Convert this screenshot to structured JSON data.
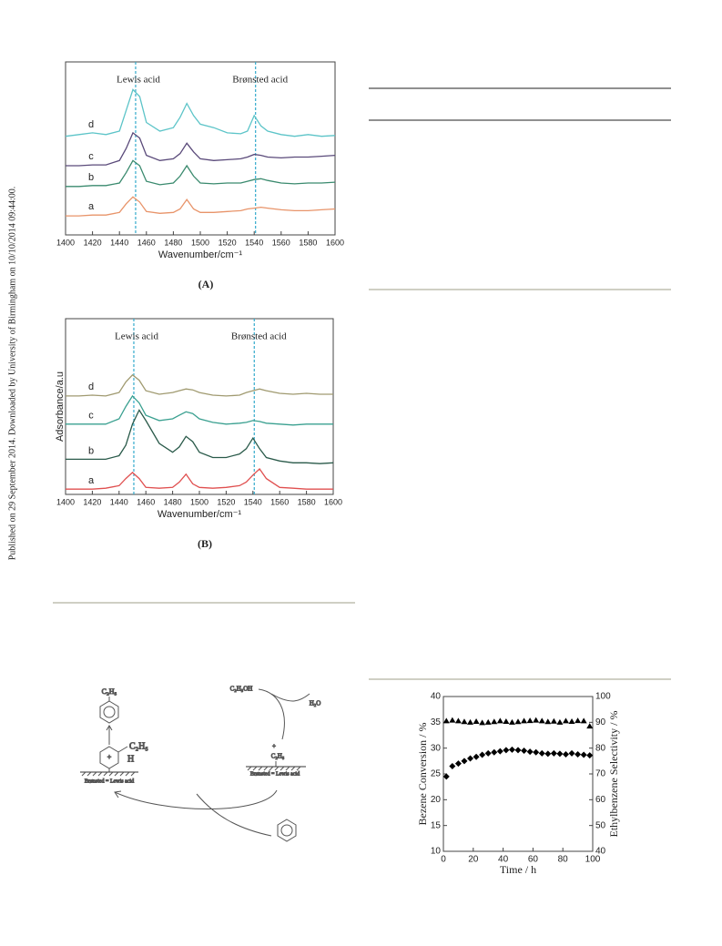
{
  "side_note": "Published on 29 September 2014. Downloaded by University of Birmingham on 10/10/2014 09:44:00.",
  "scheme": {
    "top_product": "C₂H₅",
    "ethanol": "C₂H₅OH",
    "water": "H₂O",
    "cation_charge": "+",
    "cation": "C₂H₅",
    "ring_charge": "+",
    "ring_h": "H",
    "ring_ethyl": "C₂H₅",
    "site_left": "Brønsted = Lewis acid",
    "site_right": "Brønsted = Lewis acid"
  },
  "chart_data": [
    {
      "type": "line",
      "caption": "(A)",
      "xlabel": "Wavenumber/cm⁻¹",
      "x": [
        1400,
        1410,
        1420,
        1430,
        1440,
        1445,
        1450,
        1455,
        1460,
        1470,
        1480,
        1485,
        1490,
        1495,
        1500,
        1510,
        1520,
        1530,
        1535,
        1540,
        1545,
        1550,
        1560,
        1570,
        1580,
        1590,
        1600
      ],
      "xlim": [
        1400,
        1600
      ],
      "xticks": [
        1400,
        1420,
        1440,
        1460,
        1480,
        1500,
        1520,
        1540,
        1560,
        1580,
        1600
      ],
      "ylim": [
        0,
        10
      ],
      "annotations": [
        {
          "text": "Lewis  acid",
          "x": 1452
        },
        {
          "text": "Brønsted acid",
          "x": 1541
        }
      ],
      "series": [
        {
          "name": "a",
          "color": "#e8946a",
          "values": [
            1.1,
            1.1,
            1.15,
            1.15,
            1.3,
            1.8,
            2.2,
            1.9,
            1.35,
            1.25,
            1.3,
            1.5,
            2.05,
            1.5,
            1.3,
            1.3,
            1.35,
            1.4,
            1.5,
            1.55,
            1.6,
            1.55,
            1.45,
            1.4,
            1.4,
            1.45,
            1.5
          ]
        },
        {
          "name": "b",
          "color": "#3a8a6e",
          "values": [
            2.8,
            2.8,
            2.85,
            2.85,
            3.0,
            3.6,
            4.3,
            4.0,
            3.1,
            2.9,
            3.0,
            3.4,
            4.0,
            3.4,
            3.0,
            2.95,
            3.0,
            3.0,
            3.1,
            3.2,
            3.25,
            3.15,
            3.0,
            2.95,
            3.0,
            3.0,
            3.05
          ]
        },
        {
          "name": "c",
          "color": "#5a4a7a",
          "values": [
            4.0,
            4.0,
            4.05,
            4.05,
            4.3,
            5.0,
            5.9,
            5.6,
            4.6,
            4.3,
            4.4,
            4.7,
            5.3,
            4.8,
            4.4,
            4.3,
            4.35,
            4.4,
            4.5,
            4.65,
            4.6,
            4.5,
            4.45,
            4.5,
            4.5,
            4.55,
            4.6
          ]
        },
        {
          "name": "d",
          "color": "#5cc4c8",
          "values": [
            5.7,
            5.8,
            5.9,
            5.8,
            6.0,
            7.2,
            8.4,
            8.0,
            6.5,
            6.0,
            6.2,
            6.8,
            7.6,
            6.9,
            6.4,
            6.2,
            5.9,
            5.85,
            6.0,
            6.9,
            6.3,
            6.0,
            5.8,
            5.7,
            5.8,
            5.7,
            5.75
          ]
        }
      ]
    },
    {
      "type": "line",
      "caption": "(B)",
      "xlabel": "Wavenumber/cm⁻¹",
      "ylabel": "Adsorbance/a.u",
      "x": [
        1400,
        1410,
        1420,
        1430,
        1440,
        1445,
        1450,
        1455,
        1460,
        1470,
        1480,
        1485,
        1490,
        1495,
        1500,
        1510,
        1520,
        1530,
        1535,
        1540,
        1545,
        1550,
        1560,
        1570,
        1580,
        1590,
        1600
      ],
      "xlim": [
        1400,
        1600
      ],
      "xticks": [
        1400,
        1420,
        1440,
        1460,
        1480,
        1500,
        1520,
        1540,
        1560,
        1580,
        1600
      ],
      "ylim": [
        0,
        10
      ],
      "annotations": [
        {
          "text": "Lewis  acid",
          "x": 1451
        },
        {
          "text": "Brønsted acid",
          "x": 1541
        }
      ],
      "series": [
        {
          "name": "a",
          "color": "#e05050",
          "values": [
            0.3,
            0.3,
            0.3,
            0.35,
            0.5,
            0.9,
            1.25,
            0.9,
            0.4,
            0.35,
            0.4,
            0.7,
            1.15,
            0.6,
            0.4,
            0.35,
            0.4,
            0.5,
            0.7,
            1.1,
            1.45,
            0.9,
            0.4,
            0.35,
            0.3,
            0.3,
            0.3
          ]
        },
        {
          "name": "b",
          "color": "#2a5a4a",
          "values": [
            2.0,
            2.0,
            2.0,
            2.0,
            2.2,
            2.8,
            4.0,
            4.8,
            4.2,
            2.9,
            2.4,
            2.7,
            3.3,
            3.0,
            2.4,
            2.1,
            2.1,
            2.3,
            2.6,
            3.2,
            2.6,
            2.1,
            1.9,
            1.8,
            1.8,
            1.75,
            1.8
          ]
        },
        {
          "name": "c",
          "color": "#3aa090",
          "values": [
            4.0,
            4.0,
            4.0,
            4.0,
            4.3,
            5.0,
            5.6,
            5.2,
            4.5,
            4.2,
            4.3,
            4.5,
            4.7,
            4.6,
            4.3,
            4.1,
            4.0,
            4.05,
            4.1,
            4.2,
            4.15,
            4.05,
            4.0,
            3.95,
            4.0,
            4.0,
            4.0
          ]
        },
        {
          "name": "d",
          "color": "#a09a70",
          "values": [
            5.6,
            5.6,
            5.65,
            5.6,
            5.8,
            6.4,
            6.8,
            6.5,
            5.9,
            5.7,
            5.8,
            5.9,
            6.0,
            5.95,
            5.8,
            5.65,
            5.6,
            5.65,
            5.8,
            5.9,
            6.0,
            5.9,
            5.75,
            5.7,
            5.75,
            5.7,
            5.7
          ]
        }
      ]
    },
    {
      "type": "scatter",
      "xlabel": "Time / h",
      "ylabel": "Bezene Conversion / %",
      "y2label": "Ethylbenzene Selectivity / %",
      "x": [
        2,
        6,
        10,
        14,
        18,
        22,
        26,
        30,
        34,
        38,
        42,
        46,
        50,
        54,
        58,
        62,
        66,
        70,
        74,
        78,
        82,
        86,
        90,
        94,
        98
      ],
      "xlim": [
        0,
        100
      ],
      "xticks": [
        0,
        20,
        40,
        60,
        80,
        100
      ],
      "ylim": [
        10,
        40
      ],
      "yticks": [
        10,
        15,
        20,
        25,
        30,
        35,
        40
      ],
      "y2lim": [
        40,
        100
      ],
      "y2ticks": [
        40,
        50,
        60,
        70,
        80,
        90,
        100
      ],
      "series": [
        {
          "color": "#000000",
          "marker": "diamond",
          "values": [
            24.5,
            26.5,
            27.0,
            27.5,
            28.0,
            28.3,
            28.7,
            29.0,
            29.2,
            29.4,
            29.6,
            29.7,
            29.6,
            29.5,
            29.3,
            29.2,
            29.0,
            28.9,
            29.0,
            28.9,
            28.8,
            29.0,
            28.8,
            28.7,
            28.6
          ]
        },
        {
          "color": "#000000",
          "marker": "triangle",
          "axis": "y2",
          "values": [
            90.5,
            90.8,
            90.5,
            90.2,
            90.0,
            90.3,
            89.8,
            90.0,
            90.2,
            90.5,
            90.3,
            90.0,
            90.2,
            90.5,
            90.6,
            90.8,
            90.5,
            90.2,
            90.4,
            90.0,
            90.5,
            90.3,
            90.6,
            90.5,
            88.5
          ]
        }
      ]
    }
  ]
}
